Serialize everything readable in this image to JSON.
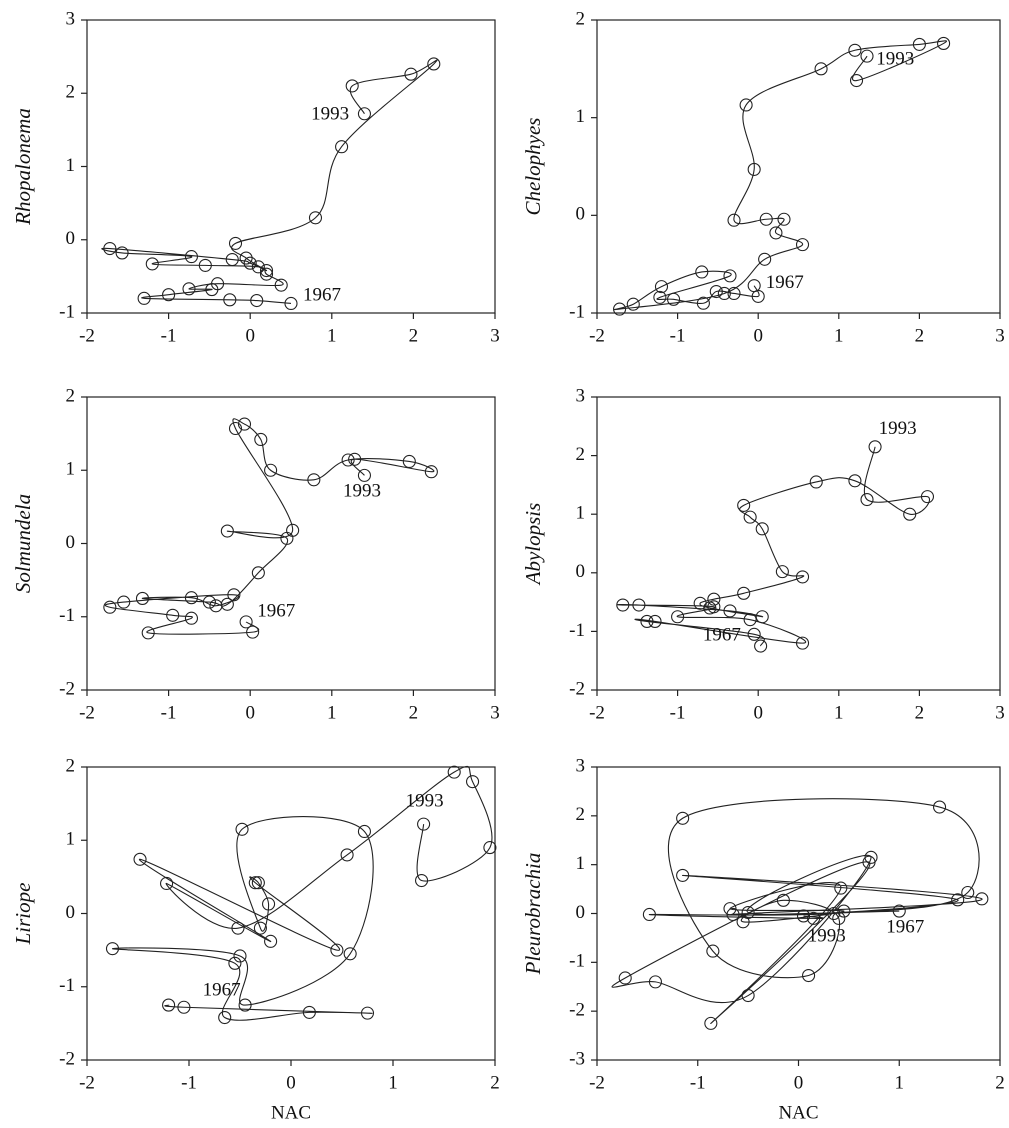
{
  "chart_data": [
    {
      "type": "line",
      "ylabel": "Rhopalonema",
      "xlim": [
        -2,
        3
      ],
      "ylim": [
        -1,
        3
      ],
      "xticks": [
        -2,
        -1,
        0,
        1,
        2,
        3
      ],
      "yticks": [
        -1,
        0,
        1,
        2,
        3
      ],
      "x": [
        0.5,
        0.08,
        -0.25,
        -1.3,
        -1.0,
        -0.47,
        -0.75,
        -0.4,
        0.38,
        0.2,
        0.1,
        -0.55,
        -1.2,
        -0.72,
        -1.57,
        -1.72,
        -0.22,
        0.0,
        0.2,
        -0.05,
        -0.18,
        0.8,
        1.12,
        2.25,
        1.97,
        1.25,
        1.4
      ],
      "values": [
        -0.87,
        -0.83,
        -0.82,
        -0.8,
        -0.75,
        -0.68,
        -0.67,
        -0.6,
        -0.62,
        -0.47,
        -0.37,
        -0.35,
        -0.33,
        -0.23,
        -0.18,
        -0.12,
        -0.27,
        -0.32,
        -0.42,
        -0.25,
        -0.05,
        0.3,
        1.27,
        2.4,
        2.26,
        2.1,
        1.72
      ],
      "annotations": [
        {
          "text": "1993",
          "x": 0.98,
          "y": 1.7
        },
        {
          "text": "1967",
          "x": 0.88,
          "y": -0.77
        }
      ]
    },
    {
      "type": "line",
      "ylabel": "Chelophyes",
      "xlim": [
        -2,
        3
      ],
      "ylim": [
        -1,
        2
      ],
      "xticks": [
        -2,
        -1,
        0,
        1,
        2,
        3
      ],
      "yticks": [
        -1,
        0,
        1,
        2
      ],
      "x": [
        -0.05,
        0.0,
        -0.3,
        -0.52,
        -0.68,
        -1.05,
        -1.22,
        -0.35,
        -0.7,
        -1.2,
        -1.55,
        -1.72,
        -0.42,
        0.08,
        0.55,
        0.22,
        0.32,
        0.1,
        -0.3,
        -0.05,
        -0.15,
        0.78,
        1.2,
        2.0,
        2.3,
        1.22,
        1.35
      ],
      "values": [
        -0.72,
        -0.83,
        -0.8,
        -0.78,
        -0.9,
        -0.86,
        -0.84,
        -0.62,
        -0.58,
        -0.73,
        -0.91,
        -0.96,
        -0.8,
        -0.45,
        -0.3,
        -0.18,
        -0.04,
        -0.04,
        -0.05,
        0.47,
        1.13,
        1.5,
        1.69,
        1.75,
        1.76,
        1.38,
        1.63
      ],
      "annotations": [
        {
          "text": "1993",
          "x": 1.7,
          "y": 1.59
        },
        {
          "text": "1967",
          "x": 0.33,
          "y": -0.7
        }
      ]
    },
    {
      "type": "line",
      "ylabel": "Solmundela",
      "xlim": [
        -2,
        3
      ],
      "ylim": [
        -2,
        2
      ],
      "xticks": [
        -2,
        -1,
        0,
        1,
        2,
        3
      ],
      "yticks": [
        -2,
        -1,
        0,
        1,
        2
      ],
      "x": [
        -0.05,
        0.03,
        -1.25,
        -0.72,
        -0.95,
        -1.72,
        -1.55,
        -0.2,
        -0.42,
        -0.72,
        -1.32,
        -0.5,
        -0.28,
        0.1,
        0.45,
        -0.28,
        0.52,
        -0.18,
        -0.07,
        0.13,
        0.25,
        0.78,
        1.2,
        1.95,
        2.22,
        1.28,
        1.4
      ],
      "values": [
        -1.07,
        -1.21,
        -1.22,
        -1.02,
        -0.98,
        -0.87,
        -0.8,
        -0.7,
        -0.85,
        -0.74,
        -0.75,
        -0.8,
        -0.83,
        -0.4,
        0.07,
        0.17,
        0.18,
        1.57,
        1.63,
        1.42,
        1.0,
        0.87,
        1.14,
        1.12,
        0.98,
        1.15,
        0.93
      ],
      "annotations": [
        {
          "text": "1993",
          "x": 1.37,
          "y": 0.7
        },
        {
          "text": "1967",
          "x": 0.32,
          "y": -0.94
        }
      ]
    },
    {
      "type": "line",
      "ylabel": "Abylopsis",
      "xlim": [
        -2,
        3
      ],
      "ylim": [
        -2,
        3
      ],
      "xticks": [
        -2,
        -1,
        0,
        1,
        2,
        3
      ],
      "yticks": [
        -2,
        -1,
        0,
        1,
        2,
        3
      ],
      "x": [
        0.03,
        -0.05,
        -1.38,
        -1.28,
        0.55,
        -0.1,
        -1.0,
        -0.55,
        -1.68,
        -1.48,
        -0.35,
        0.05,
        -0.6,
        -0.72,
        -0.55,
        -0.18,
        0.55,
        0.3,
        0.05,
        -0.1,
        -0.18,
        0.72,
        1.2,
        1.88,
        2.1,
        1.35,
        1.45
      ],
      "values": [
        -1.25,
        -1.05,
        -0.83,
        -0.83,
        -1.2,
        -0.8,
        -0.75,
        -0.58,
        -0.55,
        -0.55,
        -0.65,
        -0.75,
        -0.6,
        -0.52,
        -0.45,
        -0.35,
        -0.07,
        0.02,
        0.75,
        0.95,
        1.15,
        1.55,
        1.57,
        1.0,
        1.3,
        1.25,
        2.15
      ],
      "annotations": [
        {
          "text": "1993",
          "x": 1.73,
          "y": 2.44
        },
        {
          "text": "1967",
          "x": -0.45,
          "y": -1.08
        }
      ]
    },
    {
      "type": "line",
      "ylabel": "Liriope",
      "xlabel": "NAC",
      "xlim": [
        -2,
        2
      ],
      "ylim": [
        -2,
        2
      ],
      "xticks": [
        -2,
        -1,
        0,
        1,
        2
      ],
      "yticks": [
        -2,
        -1,
        0,
        1,
        2
      ],
      "x": [
        -1.2,
        -1.05,
        0.75,
        0.18,
        -0.65,
        -0.55,
        -1.75,
        -0.5,
        -0.45,
        0.58,
        0.72,
        -0.48,
        -0.3,
        -0.22,
        -0.32,
        -0.35,
        0.45,
        -1.48,
        -0.2,
        -1.22,
        -0.52,
        0.55,
        1.6,
        1.78,
        1.95,
        1.28,
        1.3
      ],
      "values": [
        -1.25,
        -1.28,
        -1.36,
        -1.35,
        -1.42,
        -0.68,
        -0.48,
        -0.58,
        -1.25,
        -0.55,
        1.12,
        1.15,
        -0.2,
        0.13,
        0.42,
        0.42,
        -0.5,
        0.74,
        -0.38,
        0.41,
        -0.2,
        0.8,
        1.93,
        1.8,
        0.9,
        0.45,
        1.22
      ],
      "annotations": [
        {
          "text": "1993",
          "x": 1.31,
          "y": 1.52
        },
        {
          "text": "1967",
          "x": -0.68,
          "y": -1.06
        }
      ]
    },
    {
      "type": "line",
      "ylabel": "Pleurobrachia",
      "xlabel": "NAC",
      "xlim": [
        -2,
        2
      ],
      "ylim": [
        -3,
        3
      ],
      "xticks": [
        -2,
        -1,
        0,
        1,
        2
      ],
      "yticks": [
        -3,
        -2,
        -1,
        0,
        1,
        2,
        3
      ],
      "x": [
        1.0,
        -0.65,
        1.82,
        -1.15,
        1.58,
        -0.5,
        0.72,
        -0.5,
        -1.42,
        -1.72,
        0.7,
        -0.87,
        0.42,
        -0.68,
        0.45,
        -0.55,
        -0.15,
        0.4,
        0.1,
        -0.85,
        -1.15,
        1.4,
        1.68,
        0.35,
        -1.48,
        0.15,
        0.05
      ],
      "values": [
        0.05,
        -0.02,
        0.3,
        0.78,
        0.28,
        0.02,
        1.15,
        -1.68,
        -1.4,
        -1.32,
        1.05,
        -2.25,
        0.52,
        0.1,
        0.05,
        -0.17,
        0.27,
        -0.1,
        -1.27,
        -0.77,
        1.95,
        2.18,
        0.43,
        0.0,
        -0.02,
        -0.1,
        -0.05
      ],
      "annotations": [
        {
          "text": "1993",
          "x": 0.28,
          "y": -0.48
        },
        {
          "text": "1967",
          "x": 1.06,
          "y": -0.3
        }
      ]
    }
  ]
}
